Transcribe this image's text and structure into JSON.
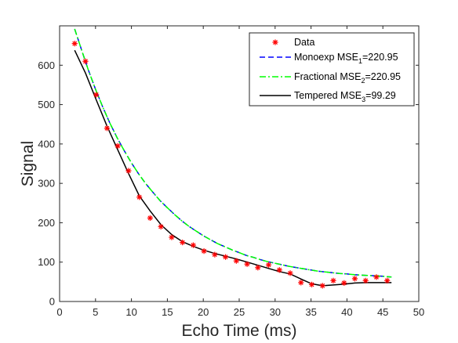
{
  "chart_data": {
    "type": "scatter",
    "xlabel": "Echo Time (ms)",
    "ylabel": "Signal",
    "xlim": [
      0,
      50
    ],
    "ylim": [
      0,
      700
    ],
    "xticks": [
      0,
      5,
      10,
      15,
      20,
      25,
      30,
      35,
      40,
      45,
      50
    ],
    "yticks": [
      0,
      100,
      200,
      300,
      400,
      500,
      600
    ],
    "grid": false,
    "legend_position": "top-right",
    "data": {
      "name": "Data",
      "color": "#ff0000",
      "marker": "asterisk",
      "x": [
        2.1,
        3.6,
        5.1,
        6.6,
        8.1,
        9.6,
        11.1,
        12.6,
        14.1,
        15.6,
        17.1,
        18.6,
        20.1,
        21.6,
        23.1,
        24.6,
        26.1,
        27.6,
        29.1,
        30.6,
        32.1,
        33.6,
        35.1,
        36.6,
        38.1,
        39.6,
        41.1,
        42.6,
        44.1,
        45.6
      ],
      "y": [
        655,
        610,
        525,
        440,
        395,
        332,
        265,
        212,
        190,
        163,
        150,
        143,
        128,
        119,
        113,
        103,
        95,
        86,
        93,
        80,
        72,
        48,
        43,
        40,
        53,
        47,
        58,
        53,
        62,
        53
      ]
    },
    "series": [
      {
        "name": "Monoexp",
        "legend_label": {
          "main": "Monoexp MSE",
          "sub": "1",
          "value": "=220.95"
        },
        "color": "#0000ff",
        "style": "dashed",
        "x": [
          2.1,
          3,
          4,
          5,
          6,
          7,
          8,
          9,
          10,
          11,
          12,
          13,
          14,
          15,
          16,
          17,
          18,
          19,
          20,
          21,
          22,
          23,
          24,
          25,
          26,
          27,
          28,
          29,
          30,
          31,
          32,
          33,
          34,
          35,
          36,
          37,
          38,
          39,
          40,
          41,
          42,
          43,
          44,
          45,
          46.2
        ],
        "y": [
          692,
          642,
          588,
          539,
          494,
          453,
          416,
          383,
          352,
          324,
          299,
          277,
          256,
          238,
          221,
          205,
          191,
          179,
          167,
          157,
          147,
          139,
          131,
          124,
          117,
          112,
          106,
          101,
          97,
          93,
          89,
          86,
          83,
          80,
          77,
          75,
          73,
          71,
          70,
          68,
          67,
          66,
          65,
          64,
          62
        ]
      },
      {
        "name": "Fractional",
        "legend_label": {
          "main": "Fractional MSE",
          "sub": "2",
          "value": "=220.95"
        },
        "color": "#00ff00",
        "style": "dashdot",
        "x": [
          2.1,
          3,
          4,
          5,
          6,
          7,
          8,
          9,
          10,
          11,
          12,
          13,
          14,
          15,
          16,
          17,
          18,
          19,
          20,
          21,
          22,
          23,
          24,
          25,
          26,
          27,
          28,
          29,
          30,
          31,
          32,
          33,
          34,
          35,
          36,
          37,
          38,
          39,
          40,
          41,
          42,
          43,
          44,
          45,
          46.2
        ],
        "y": [
          692,
          642,
          588,
          539,
          494,
          453,
          416,
          383,
          352,
          324,
          299,
          277,
          256,
          238,
          221,
          205,
          191,
          179,
          167,
          157,
          147,
          139,
          131,
          124,
          117,
          112,
          106,
          101,
          97,
          93,
          89,
          86,
          83,
          80,
          77,
          75,
          73,
          71,
          70,
          68,
          67,
          66,
          65,
          64,
          62
        ]
      },
      {
        "name": "Tempered",
        "legend_label": {
          "main": "Tempered MSE",
          "sub": "3",
          "value": "=99.29"
        },
        "color": "#000000",
        "style": "solid",
        "x": [
          2.1,
          3.6,
          5.1,
          6.6,
          8.1,
          9.6,
          11.1,
          12.6,
          14.1,
          15.6,
          17.1,
          18.6,
          20.1,
          21.6,
          23.1,
          24.6,
          26.1,
          27.6,
          29.1,
          30.6,
          32.1,
          33.6,
          35.1,
          36.6,
          38.1,
          39.6,
          41.1,
          42.6,
          44.1,
          45.6,
          46.2
        ],
        "y": [
          638,
          580,
          512,
          445,
          385,
          325,
          268,
          230,
          195,
          170,
          152,
          140,
          130,
          122,
          115,
          108,
          100,
          92,
          84,
          76,
          70,
          57,
          45,
          40,
          42,
          44,
          47,
          48,
          48,
          48,
          48
        ]
      }
    ]
  }
}
